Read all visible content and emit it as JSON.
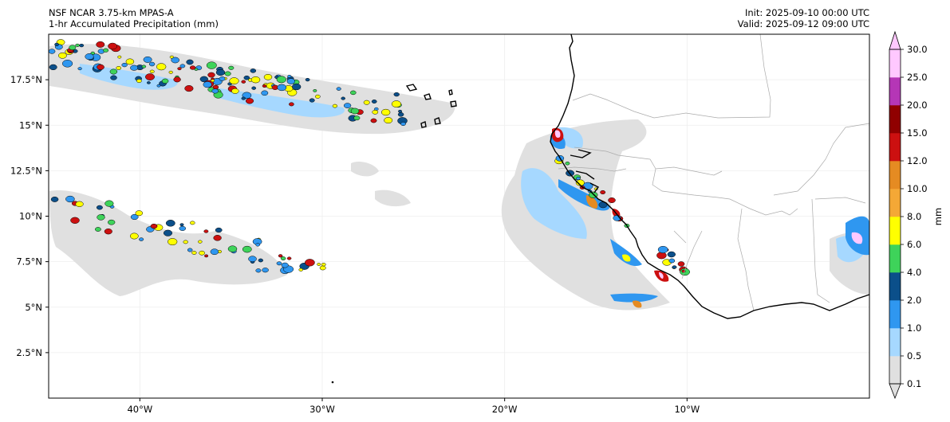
{
  "header": {
    "model": "NSF NCAR 3.75-km MPAS-A",
    "field": "1-hr Accumulated Precipitation (mm)",
    "init": "Init: 2025-09-10 00:00 UTC",
    "valid": "Valid: 2025-09-12 09:00 UTC"
  },
  "map": {
    "lon_range": [
      -45,
      0
    ],
    "lat_range": [
      0,
      20
    ],
    "lat_ticks": [
      {
        "value": 17.5,
        "label": "17.5°N"
      },
      {
        "value": 15,
        "label": "15°N"
      },
      {
        "value": 12.5,
        "label": "12.5°N"
      },
      {
        "value": 10,
        "label": "10°N"
      },
      {
        "value": 7.5,
        "label": "7.5°N"
      },
      {
        "value": 5,
        "label": "5°N"
      },
      {
        "value": 2.5,
        "label": "2.5°N"
      }
    ],
    "lon_ticks": [
      {
        "value": -40,
        "label": "40°W"
      },
      {
        "value": -30,
        "label": "30°W"
      },
      {
        "value": -20,
        "label": "20°W"
      },
      {
        "value": -10,
        "label": "10°W"
      }
    ]
  },
  "colorbar": {
    "unit_label": "mm",
    "levels": [
      {
        "label": "0.1",
        "color": "#e0e0e0"
      },
      {
        "label": "0.5",
        "color": "#a6d8ff"
      },
      {
        "label": "1.0",
        "color": "#2f97f0"
      },
      {
        "label": "2.0",
        "color": "#0b4f8a"
      },
      {
        "label": "4.0",
        "color": "#3ed35a"
      },
      {
        "label": "6.0",
        "color": "#ffff00"
      },
      {
        "label": "8.0",
        "color": "#f4a836"
      },
      {
        "label": "10.0",
        "color": "#e58b22"
      },
      {
        "label": "12.0",
        "color": "#cc1010"
      },
      {
        "label": "15.0",
        "color": "#900000"
      },
      {
        "label": "20.0",
        "color": "#b536b6"
      },
      {
        "label": "25.0",
        "color": "#ffc8ff"
      },
      {
        "label": "30.0",
        "color": ""
      }
    ]
  },
  "colors": {
    "coast": "#000000",
    "border": "#aaaaaa",
    "grid": "#eeeeee"
  }
}
